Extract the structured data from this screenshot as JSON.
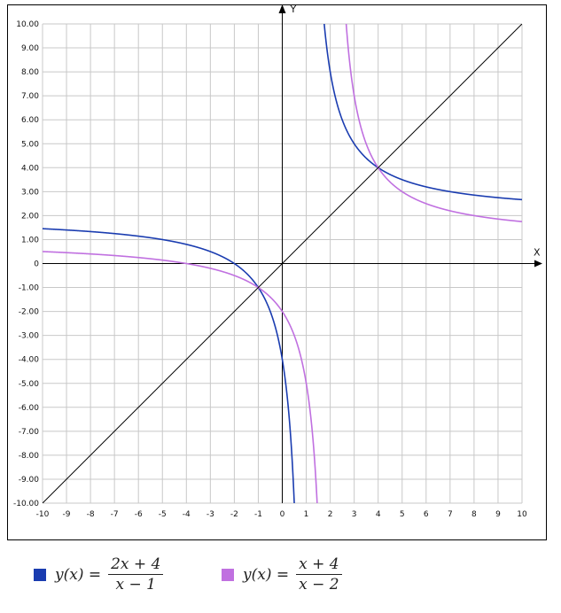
{
  "chart_data": {
    "type": "line",
    "title": "",
    "xlabel": "X",
    "ylabel": "Y",
    "xlim": [
      -10,
      10
    ],
    "ylim": [
      -10,
      10
    ],
    "grid": true,
    "x_ticks": [
      "-10",
      "-9",
      "-8",
      "-7",
      "-6",
      "-5",
      "-4",
      "-3",
      "-2",
      "-1",
      "0",
      "1",
      "2",
      "3",
      "4",
      "5",
      "6",
      "7",
      "8",
      "9",
      "10"
    ],
    "y_ticks": [
      "10.00",
      "9.00",
      "8.00",
      "7.00",
      "6.00",
      "5.00",
      "4.00",
      "3.00",
      "2.00",
      "1.00",
      "0",
      "-1.00",
      "-2.00",
      "-3.00",
      "-4.00",
      "-5.00",
      "-6.00",
      "-7.00",
      "-8.00",
      "-9.00",
      "-10.00"
    ],
    "series": [
      {
        "name": "y(x) = (2x+4)/(x-1)",
        "lhs": "y(x) =",
        "numerator": "2x + 4",
        "denominator": "x − 1",
        "a": 2,
        "b": 4,
        "c": 1,
        "d": -1,
        "color": "#1a3cb0"
      },
      {
        "name": "y(x) = (x+4)/(x-2)",
        "lhs": "y(x) =",
        "numerator": "x + 4",
        "denominator": "x − 2",
        "a": 1,
        "b": 4,
        "c": 1,
        "d": -2,
        "color": "#c070e0"
      },
      {
        "name": "y = x",
        "a": 1,
        "b": 0,
        "c": 0,
        "d": 1,
        "color": "#000000"
      }
    ],
    "legend_position": "bottom"
  }
}
